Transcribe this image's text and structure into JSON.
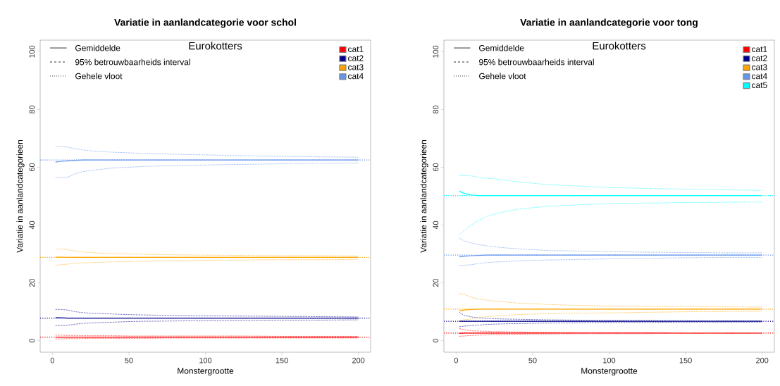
{
  "chart_data": [
    {
      "type": "line",
      "title": "Variatie in aanlandcategorie voor schol",
      "xlabel": "Monstergrootte",
      "ylabel": "Variatie in aanlandcategorieen",
      "legend_title": "Eurokotters",
      "legend": "top right",
      "line_style": "solid",
      "marker": "none",
      "grid": false,
      "annotations": [
        "Gemiddelde",
        "95% betrouwbaarheids interval",
        "Gehele vloot"
      ],
      "xlim": [
        -8,
        208
      ],
      "ylim": [
        -4,
        104
      ],
      "xticks": [
        {
          "value": 0,
          "label": "0"
        },
        {
          "value": 50,
          "label": "50"
        },
        {
          "value": 100,
          "label": "100"
        },
        {
          "value": 150,
          "label": "150"
        },
        {
          "value": 200,
          "label": "200"
        }
      ],
      "yticks": [
        {
          "value": 0,
          "label": "0"
        },
        {
          "value": 20,
          "label": "20"
        },
        {
          "value": 40,
          "label": "40"
        },
        {
          "value": 60,
          "label": "60"
        },
        {
          "value": 80,
          "label": "80"
        },
        {
          "value": 100,
          "label": "100"
        }
      ],
      "x": [
        2,
        5,
        10,
        15,
        20,
        25,
        30,
        40,
        50,
        60,
        80,
        100,
        125,
        150,
        175,
        200
      ],
      "series": [
        {
          "name": "cat1",
          "color": "#ff0000",
          "values": [
            1.2,
            1.2,
            1.2,
            1.2,
            1.2,
            1.2,
            1.2,
            1.2,
            1.2,
            1.2,
            1.2,
            1.2,
            1.2,
            1.2,
            1.2,
            1.2
          ]
        },
        {
          "name": "cat2",
          "color": "#00008b",
          "values": [
            7.9,
            7.9,
            7.8,
            7.8,
            7.8,
            7.8,
            7.8,
            7.8,
            7.8,
            7.8,
            7.8,
            7.8,
            7.8,
            7.8,
            7.8,
            7.8
          ]
        },
        {
          "name": "cat3",
          "color": "#ffa500",
          "values": [
            28.9,
            28.9,
            28.8,
            28.8,
            28.8,
            28.8,
            28.8,
            28.8,
            28.8,
            28.8,
            28.8,
            28.8,
            28.8,
            28.8,
            28.8,
            28.8
          ]
        },
        {
          "name": "cat4",
          "color": "#6495ed",
          "values": [
            61.8,
            62.0,
            62.2,
            62.4,
            62.5,
            62.5,
            62.5,
            62.5,
            62.5,
            62.5,
            62.5,
            62.5,
            62.5,
            62.5,
            62.5,
            62.5
          ]
        },
        {
          "color": "#ff6666",
          "line_style": "dashed",
          "values": [
            0.6,
            0.6,
            0.7,
            0.7,
            0.7,
            0.8,
            0.8,
            0.8,
            0.8,
            0.8,
            0.9,
            0.9,
            0.9,
            0.9,
            0.9,
            0.9
          ]
        },
        {
          "color": "#ff6666",
          "line_style": "dashed",
          "values": [
            1.9,
            1.9,
            1.8,
            1.8,
            1.7,
            1.7,
            1.7,
            1.7,
            1.6,
            1.6,
            1.6,
            1.6,
            1.6,
            1.5,
            1.5,
            1.5
          ]
        },
        {
          "color": "#6666b9",
          "line_style": "dashed",
          "values": [
            5.2,
            5.2,
            5.3,
            5.7,
            6.0,
            6.1,
            6.2,
            6.4,
            6.6,
            6.7,
            6.8,
            6.9,
            7.0,
            7.1,
            7.1,
            7.2
          ]
        },
        {
          "color": "#6666b9",
          "line_style": "dashed",
          "values": [
            10.8,
            10.8,
            10.6,
            10.0,
            9.7,
            9.5,
            9.4,
            9.2,
            9.0,
            8.9,
            8.7,
            8.6,
            8.5,
            8.4,
            8.3,
            8.2
          ]
        },
        {
          "color": "#ffc966",
          "line_style": "dashed",
          "values": [
            26.2,
            26.2,
            26.5,
            26.8,
            26.9,
            27.0,
            27.1,
            27.3,
            27.4,
            27.5,
            27.7,
            27.8,
            27.9,
            28.0,
            28.0,
            28.1
          ]
        },
        {
          "color": "#ffc966",
          "line_style": "dashed",
          "values": [
            31.7,
            31.7,
            31.5,
            31.0,
            30.7,
            30.5,
            30.3,
            30.1,
            30.0,
            29.9,
            29.7,
            29.6,
            29.5,
            29.4,
            29.4,
            29.3
          ]
        },
        {
          "color": "#a2bff4",
          "line_style": "dashed",
          "values": [
            56.5,
            56.5,
            56.6,
            57.8,
            58.5,
            58.9,
            59.2,
            59.8,
            60.0,
            60.3,
            60.6,
            60.8,
            61.0,
            61.2,
            61.4,
            61.5
          ]
        },
        {
          "color": "#a2bff4",
          "line_style": "dashed",
          "values": [
            67.3,
            67.2,
            67.0,
            66.4,
            66.0,
            65.7,
            65.5,
            65.2,
            65.0,
            64.8,
            64.5,
            64.3,
            64.0,
            63.8,
            63.6,
            63.5
          ]
        }
      ],
      "ref_lines": [
        {
          "axis": "y",
          "value": 1.2,
          "color": "#ff0000",
          "line_style": "dotted"
        },
        {
          "axis": "y",
          "value": 7.8,
          "color": "#00008b",
          "line_style": "dotted"
        },
        {
          "axis": "y",
          "value": 28.8,
          "color": "#ffa500",
          "line_style": "dotted"
        },
        {
          "axis": "y",
          "value": 62.5,
          "color": "#6495ed",
          "line_style": "dotted"
        }
      ]
    },
    {
      "type": "line",
      "title": "Variatie in aanlandcategorie voor tong",
      "xlabel": "Monstergrootte",
      "ylabel": "Variatie in aanlandcategorieen",
      "legend_title": "Eurokotters",
      "legend": "top right",
      "line_style": "solid",
      "marker": "none",
      "grid": false,
      "annotations": [
        "Gemiddelde",
        "95% betrouwbaarheids interval",
        "Gehele vloot"
      ],
      "xlim": [
        -8,
        208
      ],
      "ylim": [
        -4,
        104
      ],
      "xticks": [
        {
          "value": 0,
          "label": "0"
        },
        {
          "value": 50,
          "label": "50"
        },
        {
          "value": 100,
          "label": "100"
        },
        {
          "value": 150,
          "label": "150"
        },
        {
          "value": 200,
          "label": "200"
        }
      ],
      "yticks": [
        {
          "value": 0,
          "label": "0"
        },
        {
          "value": 20,
          "label": "20"
        },
        {
          "value": 40,
          "label": "40"
        },
        {
          "value": 60,
          "label": "60"
        },
        {
          "value": 80,
          "label": "80"
        },
        {
          "value": 100,
          "label": "100"
        }
      ],
      "x": [
        2,
        5,
        10,
        15,
        20,
        25,
        30,
        40,
        50,
        60,
        80,
        100,
        125,
        150,
        175,
        200
      ],
      "series": [
        {
          "name": "cat1",
          "color": "#ff0000",
          "values": [
            2.5,
            2.6,
            2.6,
            2.6,
            2.6,
            2.6,
            2.6,
            2.6,
            2.6,
            2.6,
            2.6,
            2.6,
            2.6,
            2.6,
            2.6,
            2.6
          ]
        },
        {
          "name": "cat2",
          "color": "#00008b",
          "values": [
            6.7,
            6.7,
            6.7,
            6.7,
            6.7,
            6.7,
            6.7,
            6.7,
            6.7,
            6.7,
            6.7,
            6.7,
            6.7,
            6.7,
            6.7,
            6.7
          ]
        },
        {
          "name": "cat3",
          "color": "#ffa500",
          "values": [
            10.3,
            10.6,
            10.8,
            10.9,
            10.9,
            10.9,
            10.9,
            10.9,
            10.9,
            10.9,
            10.9,
            10.9,
            10.9,
            10.9,
            10.9,
            10.9
          ]
        },
        {
          "name": "cat4",
          "color": "#6495ed",
          "values": [
            29.0,
            29.2,
            29.4,
            29.5,
            29.6,
            29.6,
            29.6,
            29.6,
            29.6,
            29.6,
            29.6,
            29.6,
            29.6,
            29.6,
            29.6,
            29.6
          ]
        },
        {
          "name": "cat5",
          "color": "#00ffff",
          "values": [
            51.8,
            51.0,
            50.4,
            50.2,
            50.2,
            50.2,
            50.2,
            50.2,
            50.2,
            50.2,
            50.2,
            50.2,
            50.2,
            50.2,
            50.2,
            50.2
          ]
        },
        {
          "color": "#ff6666",
          "line_style": "dashed",
          "values": [
            1.5,
            1.6,
            1.8,
            1.9,
            2.0,
            2.1,
            2.1,
            2.2,
            2.3,
            2.3,
            2.4,
            2.4,
            2.4,
            2.5,
            2.5,
            2.5
          ]
        },
        {
          "color": "#ff6666",
          "line_style": "dashed",
          "values": [
            4.2,
            3.8,
            3.4,
            3.3,
            3.2,
            3.1,
            3.1,
            3.0,
            2.9,
            2.9,
            2.8,
            2.8,
            2.8,
            2.7,
            2.7,
            2.7
          ]
        },
        {
          "color": "#6666b9",
          "line_style": "dashed",
          "values": [
            4.8,
            5.0,
            5.2,
            5.4,
            5.6,
            5.7,
            5.8,
            5.9,
            6.0,
            6.1,
            6.2,
            6.3,
            6.3,
            6.4,
            6.4,
            6.4
          ]
        },
        {
          "color": "#6666b9",
          "line_style": "dashed",
          "values": [
            9.8,
            8.8,
            8.2,
            7.9,
            7.7,
            7.6,
            7.5,
            7.4,
            7.3,
            7.2,
            7.1,
            7.0,
            7.0,
            6.9,
            6.9,
            6.9
          ]
        },
        {
          "color": "#ffc966",
          "line_style": "dashed",
          "values": [
            7.0,
            7.2,
            7.5,
            8.0,
            8.3,
            8.5,
            8.7,
            9.0,
            9.2,
            9.3,
            9.5,
            9.6,
            9.8,
            10.0,
            10.1,
            10.2
          ]
        },
        {
          "color": "#ffc966",
          "line_style": "dashed",
          "values": [
            16.3,
            16.0,
            15.0,
            14.4,
            14.0,
            13.7,
            13.5,
            13.0,
            12.8,
            12.5,
            12.2,
            12.0,
            11.9,
            11.8,
            11.7,
            11.6
          ]
        },
        {
          "color": "#a2bff4",
          "line_style": "dashed",
          "values": [
            26.0,
            26.1,
            26.3,
            26.7,
            27.0,
            27.2,
            27.3,
            27.6,
            27.8,
            27.9,
            28.1,
            28.3,
            28.5,
            28.7,
            28.8,
            28.8
          ]
        },
        {
          "color": "#a2bff4",
          "line_style": "dashed",
          "values": [
            35.5,
            34.5,
            33.8,
            33.2,
            32.8,
            32.5,
            32.2,
            31.8,
            31.5,
            31.2,
            31.0,
            30.8,
            30.6,
            30.5,
            30.4,
            30.4
          ]
        },
        {
          "color": "#66ffff",
          "line_style": "dashed",
          "values": [
            36.5,
            38.0,
            40.0,
            41.8,
            43.0,
            43.8,
            44.4,
            45.5,
            46.0,
            46.5,
            47.0,
            47.5,
            47.6,
            47.8,
            47.9,
            48.0
          ]
        },
        {
          "color": "#66ffff",
          "line_style": "dashed",
          "values": [
            57.2,
            57.1,
            57.0,
            56.5,
            56.2,
            56.0,
            55.7,
            55.0,
            54.5,
            54.0,
            53.5,
            53.0,
            52.7,
            52.4,
            52.2,
            52.0
          ]
        }
      ],
      "ref_lines": [
        {
          "axis": "y",
          "value": 2.6,
          "color": "#ff0000",
          "line_style": "dotted"
        },
        {
          "axis": "y",
          "value": 6.7,
          "color": "#00008b",
          "line_style": "dotted"
        },
        {
          "axis": "y",
          "value": 10.9,
          "color": "#ffa500",
          "line_style": "dotted"
        },
        {
          "axis": "y",
          "value": 29.6,
          "color": "#6495ed",
          "line_style": "dotted"
        },
        {
          "axis": "y",
          "value": 50.2,
          "color": "#00ffff",
          "line_style": "dotted"
        }
      ]
    }
  ]
}
